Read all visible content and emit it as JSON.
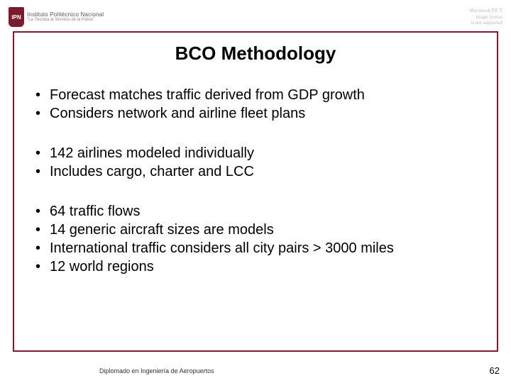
{
  "colors": {
    "frame_border": "#7a1c2c",
    "background": "#ffffff",
    "text": "#000000",
    "logo_bg": "#7a1c2c"
  },
  "header": {
    "logo_abbrev": "IPN",
    "institution_line1": "Instituto Politécnico Nacional",
    "institution_line2": "\"La Técnica al Servicio de la Patria\"",
    "right_note_l1": "Macintosh PICT",
    "right_note_l2": "image format",
    "right_note_l3": "is not supported"
  },
  "title": "BCO Methodology",
  "groups": [
    {
      "items": [
        "Forecast matches traffic derived from GDP growth",
        "Considers network and airline fleet plans"
      ]
    },
    {
      "items": [
        "142 airlines modeled individually",
        "Includes cargo, charter and LCC"
      ]
    },
    {
      "items": [
        "64 traffic flows",
        "14 generic aircraft sizes are models",
        "International traffic considers all city pairs > 3000 miles",
        "12 world regions"
      ]
    }
  ],
  "footer": {
    "left": "Diplomado en Ingeniería de Aeropuertos",
    "page": "62"
  }
}
